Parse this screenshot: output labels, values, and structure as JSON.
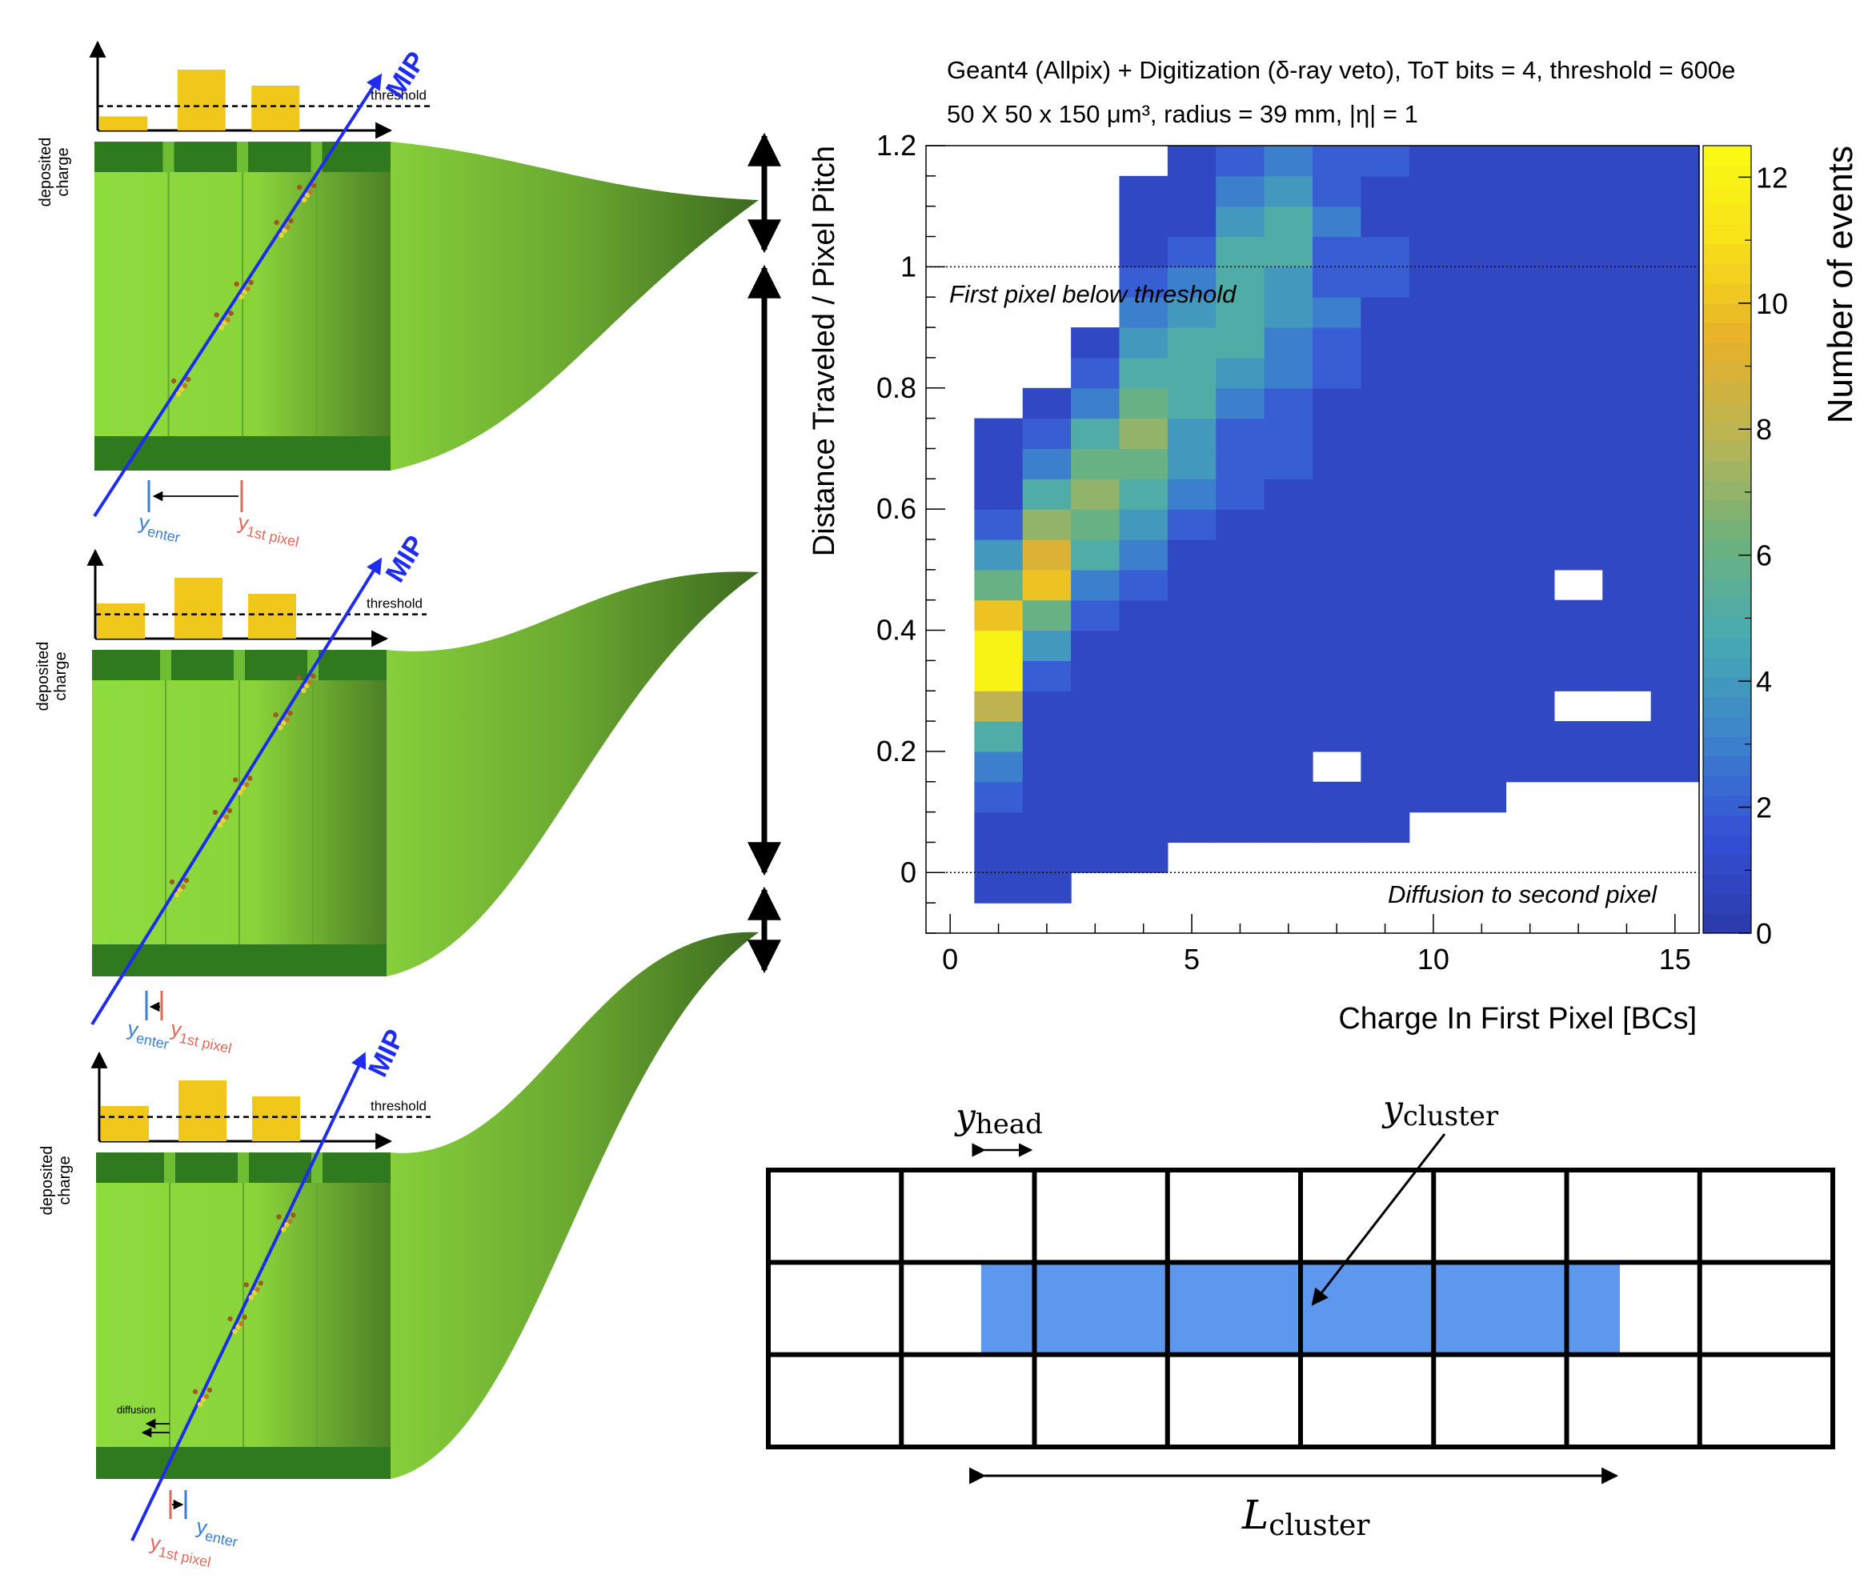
{
  "panels": [
    {
      "ylabel": "deposited\ncharge",
      "threshold_label": "threshold",
      "mip_label": "MIP",
      "bars": [
        0.22,
        0.95,
        0.7
      ],
      "threshold_level": 0.38,
      "yenter_label": "y",
      "yenter_sub": "enter",
      "yfirst_label": "y",
      "yfirst_sub": "1st pixel",
      "diffusion_label": ""
    },
    {
      "ylabel": "deposited\ncharge",
      "threshold_label": "threshold",
      "mip_label": "MIP",
      "bars": [
        0.55,
        0.95,
        0.7
      ],
      "threshold_level": 0.38,
      "yenter_label": "y",
      "yenter_sub": "enter",
      "yfirst_label": "y",
      "yfirst_sub": "1st pixel",
      "diffusion_label": ""
    },
    {
      "ylabel": "deposited\ncharge",
      "threshold_label": "threshold",
      "mip_label": "MIP",
      "bars": [
        0.55,
        0.95,
        0.7
      ],
      "threshold_level": 0.38,
      "yenter_label": "y",
      "yenter_sub": "enter",
      "yfirst_label": "y",
      "yfirst_sub": "1st pixel",
      "diffusion_label": "diffusion"
    }
  ],
  "chart_data": {
    "type": "heatmap",
    "title_line1": "Geant4 (Allpix) + Digitization (δ-ray veto), ToT bits = 4, threshold = 600e",
    "title_line2": "50 X 50 x 150 μm³, radius = 39 mm, |η| = 1",
    "xlabel": "Charge In First Pixel [BCs]",
    "ylabel": "Distance Traveled / Pixel Pitch",
    "zlabel": "Number of events",
    "xlim": [
      -0.5,
      15.5
    ],
    "ylim": [
      -0.1,
      1.2
    ],
    "zlim": [
      0,
      12.5
    ],
    "xticks": [
      0,
      5,
      10,
      15
    ],
    "yticks": [
      0,
      0.2,
      0.4,
      0.6,
      0.8,
      1,
      1.2
    ],
    "ytick_labels": [
      "0",
      "0.2",
      "0.4",
      "0.6",
      "0.8",
      "1",
      "1.2"
    ],
    "zticks": [
      0,
      2,
      4,
      6,
      8,
      10,
      12
    ],
    "ybins": 26,
    "ybin_start": -0.05,
    "ybin_width": 0.05,
    "grid": false,
    "colormap": [
      "#2b3aa8",
      "#3550d6",
      "#3d84cc",
      "#47aab2",
      "#6eb27c",
      "#b7b556",
      "#e6b02c",
      "#f8df18",
      "#fafc14"
    ],
    "hline_values": [
      1.0,
      0.0
    ],
    "annotations": [
      "First pixel below threshold",
      "Diffusion to second pixel"
    ],
    "columns": [
      [
        0,
        0,
        0,
        0,
        0,
        0,
        0,
        0,
        0,
        0,
        0,
        0,
        0,
        0,
        0,
        0,
        0,
        0,
        0,
        0,
        0,
        0,
        0,
        0,
        0,
        0
      ],
      [
        1,
        1,
        1,
        2,
        3,
        5,
        8,
        12,
        12,
        10,
        6,
        4,
        2,
        1,
        1,
        1,
        0,
        0,
        0,
        0,
        0,
        0,
        0,
        0,
        0,
        0
      ],
      [
        1,
        1,
        1,
        1,
        1,
        1,
        1,
        2,
        4,
        6,
        10,
        9,
        7,
        5,
        3,
        2,
        1,
        0,
        0,
        0,
        0,
        0,
        0,
        0,
        0,
        0
      ],
      [
        0,
        1,
        1,
        1,
        1,
        1,
        1,
        1,
        1,
        2,
        3,
        5,
        6,
        7,
        6,
        5,
        3,
        2,
        1,
        0,
        0,
        0,
        0,
        0,
        0,
        0
      ],
      [
        0,
        1,
        1,
        1,
        1,
        1,
        1,
        1,
        1,
        1,
        2,
        3,
        4,
        5,
        6,
        7,
        6,
        5,
        4,
        3,
        2,
        1,
        1,
        1,
        0,
        0
      ],
      [
        0,
        0,
        1,
        1,
        1,
        1,
        1,
        1,
        1,
        1,
        1,
        1,
        2,
        3,
        4,
        4,
        5,
        5,
        5,
        4,
        3,
        2,
        1,
        1,
        1,
        0
      ],
      [
        0,
        0,
        1,
        1,
        1,
        1,
        1,
        1,
        1,
        1,
        1,
        1,
        1,
        2,
        2,
        2,
        3,
        4,
        5,
        5,
        5,
        5,
        4,
        3,
        2,
        1
      ],
      [
        0,
        0,
        1,
        1,
        1,
        1,
        1,
        1,
        1,
        1,
        1,
        1,
        1,
        1,
        2,
        2,
        2,
        3,
        3,
        4,
        4,
        5,
        5,
        4,
        3,
        1
      ],
      [
        0,
        0,
        1,
        1,
        0,
        1,
        1,
        1,
        1,
        1,
        1,
        1,
        1,
        1,
        1,
        1,
        1,
        2,
        2,
        3,
        2,
        2,
        3,
        2,
        2,
        1
      ],
      [
        0,
        0,
        1,
        1,
        1,
        1,
        1,
        1,
        1,
        1,
        1,
        1,
        1,
        1,
        1,
        1,
        1,
        1,
        1,
        1,
        2,
        2,
        1,
        1,
        2,
        1
      ],
      [
        0,
        0,
        0,
        1,
        1,
        1,
        1,
        1,
        1,
        1,
        1,
        1,
        1,
        1,
        1,
        1,
        1,
        1,
        1,
        1,
        1,
        1,
        1,
        1,
        1,
        1
      ],
      [
        0,
        0,
        0,
        1,
        1,
        1,
        1,
        1,
        1,
        1,
        1,
        1,
        1,
        1,
        1,
        1,
        1,
        1,
        1,
        1,
        1,
        1,
        1,
        1,
        1,
        1
      ],
      [
        0,
        0,
        0,
        0,
        1,
        1,
        1,
        1,
        1,
        1,
        1,
        1,
        1,
        1,
        1,
        1,
        1,
        1,
        1,
        1,
        1,
        1,
        1,
        1,
        1,
        1
      ],
      [
        0,
        0,
        0,
        0,
        1,
        1,
        0,
        1,
        1,
        1,
        0,
        1,
        1,
        1,
        1,
        1,
        1,
        1,
        1,
        1,
        1,
        1,
        1,
        1,
        1,
        1
      ],
      [
        0,
        0,
        0,
        0,
        1,
        1,
        0,
        1,
        1,
        1,
        1,
        1,
        1,
        1,
        1,
        1,
        1,
        1,
        1,
        1,
        1,
        1,
        1,
        1,
        1,
        0
      ],
      [
        0,
        0,
        0,
        0,
        1,
        1,
        1,
        1,
        1,
        1,
        1,
        1,
        1,
        1,
        1,
        1,
        1,
        1,
        1,
        1,
        1,
        1,
        1,
        1,
        1,
        1
      ],
      [
        0,
        0,
        0,
        0,
        0,
        0,
        1,
        1,
        1,
        1,
        1,
        1,
        1,
        1,
        1,
        1,
        1,
        1,
        1,
        1,
        1,
        1,
        1,
        1,
        1,
        1
      ],
      [
        0,
        0,
        0,
        0,
        0,
        0,
        1,
        1,
        1,
        1,
        1,
        1,
        1,
        1,
        1,
        1,
        1,
        1,
        1,
        1,
        1,
        1,
        1,
        1,
        1,
        1
      ],
      [
        0,
        0,
        0,
        0,
        0,
        0,
        1,
        1,
        1,
        1,
        1,
        1,
        1,
        1,
        1,
        1,
        1,
        1,
        1,
        1,
        1,
        1,
        1,
        1,
        1,
        1
      ],
      [
        0,
        0,
        0,
        0,
        0,
        0,
        0,
        1,
        1,
        1,
        1,
        1,
        1,
        1,
        1,
        1,
        1,
        1,
        1,
        1,
        1,
        1,
        1,
        1,
        1,
        1
      ],
      [
        0,
        0,
        0,
        0,
        0,
        0,
        0,
        0,
        0,
        0,
        0,
        0,
        0,
        0,
        0,
        0,
        0,
        0,
        0,
        0,
        0,
        0,
        0,
        0,
        0,
        0
      ]
    ]
  },
  "cluster": {
    "y_head_main": "y",
    "y_head_sub": "head",
    "y_cluster_main": "y",
    "y_cluster_sub": "cluster",
    "l_cluster_main": "L",
    "l_cluster_sub": "cluster",
    "grid_cols": 8,
    "grid_rows": 3,
    "highlight_row": 1,
    "highlight_start_cols": 1.6,
    "highlight_end_cols": 6.4,
    "highlight_color": "#5e97ee"
  }
}
